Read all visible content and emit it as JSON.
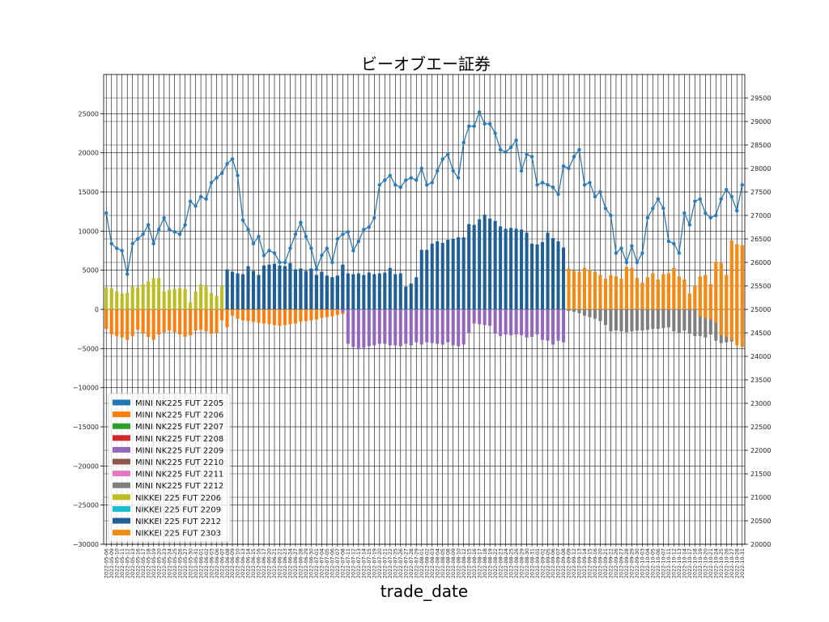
{
  "chart_data": {
    "type": "bar",
    "title": "ビーオブエー証券",
    "xlabel": "trade_date",
    "ylabel": "",
    "y2label": "",
    "ylim": [
      -30000,
      30000
    ],
    "y2lim": [
      20000,
      30000
    ],
    "yticks": [
      -30000,
      -25000,
      -20000,
      -15000,
      -10000,
      -5000,
      0,
      5000,
      10000,
      15000,
      20000,
      25000
    ],
    "y2ticks": [
      20000,
      20500,
      21000,
      21500,
      22000,
      22500,
      23000,
      23500,
      24000,
      24500,
      25000,
      25500,
      26000,
      26500,
      27000,
      27500,
      28000,
      28500,
      29000,
      29500
    ],
    "grid": true,
    "legend_position": "lower-left",
    "bar_series": [
      {
        "name": "MINI NK225 FUT 2205",
        "color": "#1f77b4"
      },
      {
        "name": "MINI NK225 FUT 2206",
        "color": "#ff7f0e"
      },
      {
        "name": "MINI NK225 FUT 2207",
        "color": "#2ca02c"
      },
      {
        "name": "MINI NK225 FUT 2208",
        "color": "#d62728"
      },
      {
        "name": "MINI NK225 FUT 2209",
        "color": "#9467bd"
      },
      {
        "name": "MINI NK225 FUT 2210",
        "color": "#8c564b"
      },
      {
        "name": "MINI NK225 FUT 2211",
        "color": "#e377c2"
      },
      {
        "name": "MINI NK225 FUT 2212",
        "color": "#7f7f7f"
      },
      {
        "name": "NIKKEI 225 FUT 2206",
        "color": "#bcbd22"
      },
      {
        "name": "NIKKEI 225 FUT 2209",
        "color": "#17becf"
      },
      {
        "name": "NIKKEI 225 FUT 2212",
        "color": "#1f5f96"
      },
      {
        "name": "NIKKEI 225 FUT 2303",
        "color": "#f28a16"
      }
    ],
    "line_color": "#2b7bb9",
    "dates": [
      "2022-05-06",
      "2022-05-09",
      "2022-05-10",
      "2022-05-11",
      "2022-05-12",
      "2022-05-13",
      "2022-05-16",
      "2022-05-17",
      "2022-05-18",
      "2022-05-19",
      "2022-05-20",
      "2022-05-23",
      "2022-05-24",
      "2022-05-25",
      "2022-05-26",
      "2022-05-27",
      "2022-05-30",
      "2022-05-31",
      "2022-06-01",
      "2022-06-02",
      "2022-06-03",
      "2022-06-06",
      "2022-06-07",
      "2022-06-08",
      "2022-06-09",
      "2022-06-10",
      "2022-06-13",
      "2022-06-14",
      "2022-06-15",
      "2022-06-16",
      "2022-06-17",
      "2022-06-20",
      "2022-06-21",
      "2022-06-22",
      "2022-06-23",
      "2022-06-24",
      "2022-06-27",
      "2022-06-28",
      "2022-06-29",
      "2022-06-30",
      "2022-07-01",
      "2022-07-04",
      "2022-07-05",
      "2022-07-06",
      "2022-07-07",
      "2022-07-08",
      "2022-07-11",
      "2022-07-12",
      "2022-07-13",
      "2022-07-14",
      "2022-07-15",
      "2022-07-19",
      "2022-07-20",
      "2022-07-21",
      "2022-07-22",
      "2022-07-25",
      "2022-07-26",
      "2022-07-27",
      "2022-07-28",
      "2022-07-29",
      "2022-08-01",
      "2022-08-02",
      "2022-08-03",
      "2022-08-04",
      "2022-08-05",
      "2022-08-08",
      "2022-08-09",
      "2022-08-10",
      "2022-08-12",
      "2022-08-15",
      "2022-08-16",
      "2022-08-17",
      "2022-08-18",
      "2022-08-19",
      "2022-08-22",
      "2022-08-23",
      "2022-08-24",
      "2022-08-25",
      "2022-08-26",
      "2022-08-29",
      "2022-08-30",
      "2022-08-31",
      "2022-09-01",
      "2022-09-02",
      "2022-09-05",
      "2022-09-06",
      "2022-09-07",
      "2022-09-08",
      "2022-09-09",
      "2022-09-12",
      "2022-09-13",
      "2022-09-14",
      "2022-09-15",
      "2022-09-16",
      "2022-09-20",
      "2022-09-21",
      "2022-09-22",
      "2022-09-26",
      "2022-09-27",
      "2022-09-28",
      "2022-09-29",
      "2022-09-30",
      "2022-10-03",
      "2022-10-04",
      "2022-10-05",
      "2022-10-06",
      "2022-10-07",
      "2022-10-11",
      "2022-10-12",
      "2022-10-13",
      "2022-10-14",
      "2022-10-17",
      "2022-10-18",
      "2022-10-19",
      "2022-10-20",
      "2022-10-21",
      "2022-10-24",
      "2022-10-25",
      "2022-10-26",
      "2022-10-27",
      "2022-10-28",
      "2022-10-31"
    ],
    "line_values": [
      27050,
      26400,
      26300,
      26250,
      25750,
      26400,
      26500,
      26600,
      26800,
      26400,
      26700,
      26950,
      26700,
      26650,
      26600,
      26800,
      27300,
      27200,
      27400,
      27350,
      27700,
      27800,
      27900,
      28100,
      28200,
      27850,
      26900,
      26700,
      26400,
      26550,
      26150,
      26250,
      26200,
      26000,
      26000,
      26300,
      26600,
      26850,
      26550,
      26300,
      25850,
      26150,
      26300,
      26000,
      26500,
      26600,
      26650,
      26250,
      26450,
      26700,
      26750,
      26950,
      27650,
      27750,
      27850,
      27650,
      27600,
      27750,
      27800,
      27750,
      28000,
      27650,
      27700,
      27950,
      28200,
      28300,
      27950,
      27800,
      28550,
      28900,
      28900,
      29200,
      28950,
      28950,
      28750,
      28400,
      28350,
      28450,
      28600,
      27950,
      28300,
      28250,
      27650,
      27700,
      27650,
      27600,
      27450,
      28050,
      28000,
      28250,
      28400,
      27650,
      27700,
      27400,
      27500,
      27150,
      27000,
      26200,
      26300,
      26000,
      26350,
      26000,
      26200,
      26950,
      27150,
      27350,
      27150,
      26450,
      26400,
      26200,
      27050,
      26800,
      27300,
      27350,
      27050,
      26950,
      27000,
      27350,
      27550,
      27400,
      27100,
      27650
    ],
    "segments": [
      {
        "from": 0,
        "to": 22,
        "pos": 8,
        "neg": 1,
        "pos_vals": [
          2800,
          2700,
          2300,
          2000,
          2100,
          2900,
          2800,
          3200,
          3600,
          4000,
          4000,
          2300,
          2500,
          2600,
          2700,
          2600,
          900,
          2300,
          3200,
          3000,
          2100,
          1700,
          3000
        ],
        "neg_vals": [
          -2500,
          -3200,
          -3400,
          -3600,
          -3900,
          -3400,
          -2600,
          -3100,
          -3500,
          -3900,
          -3200,
          -2900,
          -2700,
          -2900,
          -3200,
          -3500,
          -3300,
          -2700,
          -2600,
          -2800,
          -3100,
          -3000,
          -1400
        ]
      },
      {
        "from": 23,
        "to": 45,
        "pos": 10,
        "neg": 1,
        "pos_vals": [
          5100,
          4800,
          4600,
          4500,
          5500,
          4900,
          4400,
          5600,
          5700,
          5800,
          5600,
          5500,
          5900,
          5100,
          5200,
          4900,
          5200,
          4400,
          4800,
          4300,
          4100,
          4300,
          5700
        ],
        "neg_vals": [
          -2300,
          -800,
          -1200,
          -1400,
          -1500,
          -1600,
          -1700,
          -1800,
          -1900,
          -2000,
          -2100,
          -2000,
          -1900,
          -1800,
          -1600,
          -1500,
          -1400,
          -1300,
          -1100,
          -1000,
          -900,
          -700,
          -600
        ]
      },
      {
        "from": 23,
        "to": 45,
        "pos": 10,
        "neg": 4,
        "pos_vals": [
          5100,
          4800,
          4600,
          4500,
          5500,
          4900,
          4400,
          5600,
          5700,
          5800,
          5600,
          5500,
          5900,
          5100,
          5200,
          4900,
          5200,
          4400,
          4800,
          4300,
          4100,
          4300,
          5700
        ],
        "neg_vals": [
          0,
          0,
          0,
          0,
          0,
          0,
          0,
          0,
          0,
          0,
          0,
          0,
          0,
          0,
          0,
          0,
          0,
          0,
          0,
          0,
          0,
          0,
          -400
        ]
      },
      {
        "from": 23,
        "to": 45,
        "pos": 10,
        "neg": 4,
        "pos_vals": [
          5100,
          4800,
          4600,
          4500,
          5500,
          4900,
          4400,
          5600,
          5700,
          5800,
          5600,
          5500,
          5900,
          5100,
          5200,
          4900,
          5200,
          4400,
          4800,
          4300,
          4100,
          4300,
          5700
        ],
        "neg_vals": [
          0,
          0,
          0,
          0,
          0,
          0,
          0,
          0,
          0,
          0,
          0,
          0,
          0,
          0,
          0,
          0,
          0,
          0,
          0,
          0,
          0,
          0,
          0
        ]
      },
      {
        "from": 46,
        "to": 87,
        "pos": 10,
        "neg": 4,
        "pos_vals": [
          4600,
          4500,
          4600,
          4400,
          4700,
          4500,
          4600,
          4700,
          5300,
          4500,
          4600,
          2900,
          3300,
          4100,
          7600,
          7600,
          8400,
          8700,
          8500,
          8900,
          9000,
          9200,
          9200,
          10900,
          10800,
          11500,
          12100,
          11600,
          11300,
          10600,
          10300,
          10400,
          10300,
          10200,
          9800,
          8400,
          8300,
          8600,
          9800,
          9100,
          8700,
          7900
        ],
        "neg_vals": [
          -4400,
          -4800,
          -5100,
          -4900,
          -4700,
          -4600,
          -4400,
          -4400,
          -4600,
          -4600,
          -4700,
          -4400,
          -4600,
          -4200,
          -4500,
          -4200,
          -4300,
          -4400,
          -4500,
          -4200,
          -4600,
          -4700,
          -4500,
          -3000,
          -1800,
          -1900,
          -2000,
          -2100,
          -3100,
          -3400,
          -3200,
          -3300,
          -3200,
          -3300,
          -3600,
          -3500,
          -3200,
          -3900,
          -4000,
          -4500,
          -4000,
          -4200
        ]
      },
      {
        "from": 88,
        "to": 121,
        "pos": 11,
        "neg": 7,
        "pos_vals": [
          5200,
          4900,
          4800,
          5300,
          5000,
          4800,
          4400,
          3900,
          4400,
          4200,
          3900,
          5400,
          5300,
          4000,
          3400,
          4100,
          4600,
          3800,
          4500,
          4600,
          5300,
          4200,
          3800,
          2000,
          3000,
          4200,
          4400,
          3200,
          6100,
          5900,
          4400,
          8800,
          8300,
          8200
        ],
        "neg_vals": [
          -200,
          -300,
          -500,
          -800,
          -1000,
          -1200,
          -1500,
          -2000,
          -2800,
          -2700,
          -2800,
          -2900,
          -2800,
          -2700,
          -2700,
          -2600,
          -2500,
          -2500,
          -2400,
          -2300,
          -2800,
          -3000,
          -2700,
          -3100,
          -3400,
          -3400,
          -3600,
          -3200,
          -4000,
          -4300,
          -4200,
          -4100,
          -3900,
          -3700
        ]
      },
      {
        "from": 88,
        "to": 121,
        "pos": 11,
        "neg": 11,
        "pos_vals": [
          5200,
          4900,
          4800,
          5300,
          5000,
          4800,
          4400,
          3900,
          4400,
          4200,
          3900,
          5400,
          5300,
          4000,
          3400,
          4100,
          4600,
          3800,
          4500,
          4600,
          5300,
          4200,
          3800,
          2000,
          3000,
          4200,
          4400,
          3200,
          6100,
          5900,
          4400,
          8800,
          8300,
          8200
        ],
        "neg_vals": [
          0,
          0,
          0,
          0,
          0,
          0,
          0,
          0,
          0,
          0,
          0,
          0,
          0,
          0,
          0,
          0,
          0,
          0,
          0,
          0,
          0,
          0,
          0,
          0,
          0,
          -900,
          -1100,
          -1300,
          -1700,
          -3300,
          -3500,
          -3900,
          -4600,
          -4800
        ]
      }
    ]
  }
}
